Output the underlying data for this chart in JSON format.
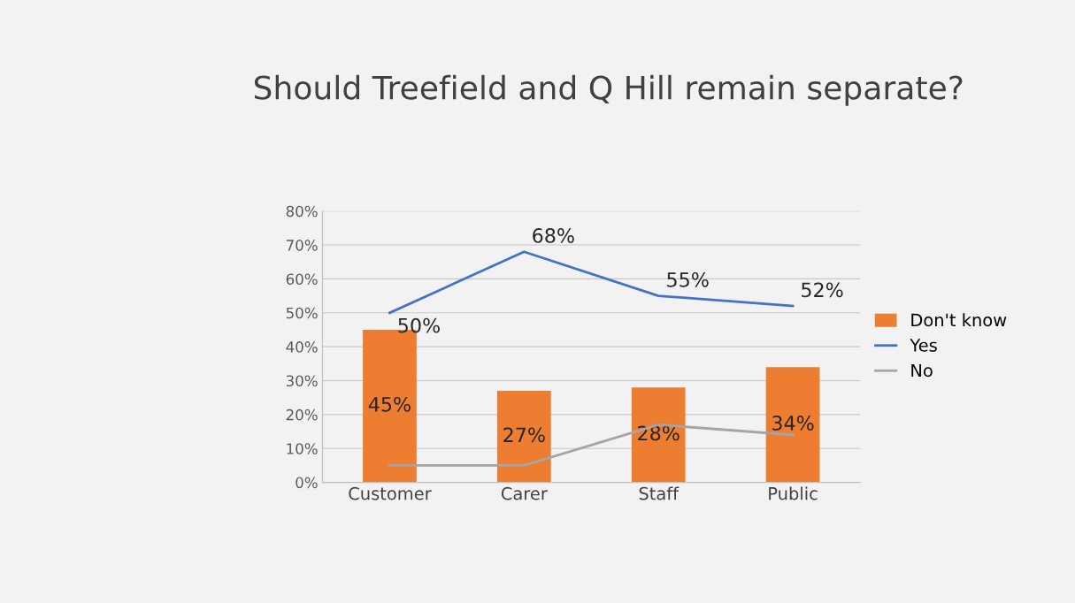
{
  "chart_data": {
    "type": "bar",
    "title": "Should Treefield and Q Hill remain separate?",
    "categories": [
      "Customer",
      "Carer",
      "Staff",
      "Public"
    ],
    "series": [
      {
        "name": "Don't know",
        "color": "#ed7d31",
        "values": [
          45,
          27,
          28,
          34
        ],
        "value_labels": [
          "45%",
          "27%",
          "28%",
          "34%"
        ]
      },
      {
        "name": "Yes",
        "type": "line",
        "color": "#4472c4",
        "values": [
          50,
          68,
          55,
          52
        ],
        "value_labels": [
          "50%",
          "68%",
          "55%",
          "52%"
        ]
      },
      {
        "name": "No",
        "type": "line",
        "color": "#a5a5a5",
        "values": [
          5,
          5,
          17,
          14
        ]
      }
    ],
    "ylim": [
      0,
      80
    ],
    "yticks": [
      {
        "value": 0,
        "label": "0%"
      },
      {
        "value": 10,
        "label": "10%"
      },
      {
        "value": 20,
        "label": "20%"
      },
      {
        "value": 30,
        "label": "30%"
      },
      {
        "value": 40,
        "label": "40%"
      },
      {
        "value": 50,
        "label": "50%"
      },
      {
        "value": 60,
        "label": "60%"
      },
      {
        "value": 70,
        "label": "70%"
      },
      {
        "value": 80,
        "label": "80%"
      }
    ],
    "grid": "y",
    "legend": "right"
  }
}
